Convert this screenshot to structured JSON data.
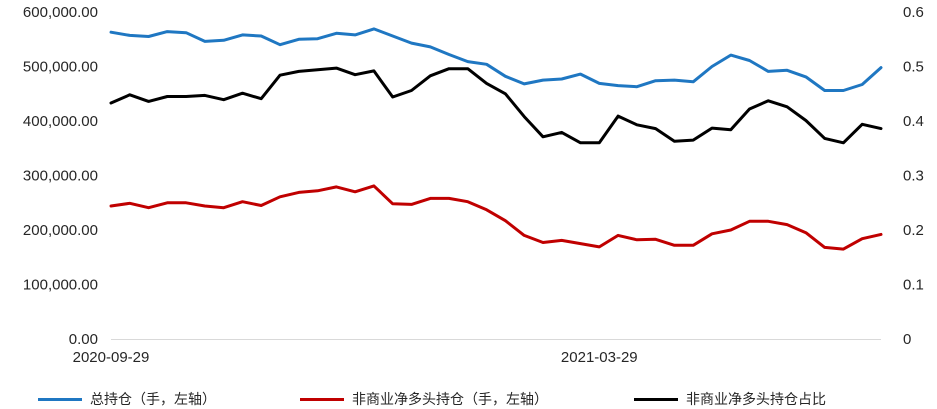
{
  "chart_data": {
    "type": "line",
    "title": "",
    "xlabel": "",
    "ylabel": "",
    "y_left": {
      "ylim": [
        0,
        600000
      ],
      "ticks": [
        "0.00",
        "100,000.00",
        "200,000.00",
        "300,000.00",
        "400,000.00",
        "500,000.00",
        "600,000.00"
      ]
    },
    "y_right": {
      "ylim": [
        0,
        0.6
      ],
      "ticks": [
        "0",
        "0.1",
        "0.2",
        "0.3",
        "0.4",
        "0.5",
        "0.6"
      ]
    },
    "x_tick_labels": [
      {
        "index": 0,
        "label": "2020-09-29"
      },
      {
        "index": 26,
        "label": "2021-03-29"
      }
    ],
    "grid": false,
    "legend_position": "bottom",
    "series": [
      {
        "name": "总持仓（手，左轴）",
        "axis": "left",
        "color": "#1f77c2",
        "values": [
          563000,
          557000,
          555000,
          564000,
          562000,
          546000,
          548000,
          558000,
          556000,
          540000,
          550000,
          551000,
          561000,
          558000,
          569000,
          556000,
          543000,
          536000,
          522000,
          509000,
          504000,
          482000,
          468000,
          475000,
          477000,
          486000,
          469000,
          465000,
          463000,
          474000,
          475000,
          472000,
          500000,
          521000,
          511000,
          491000,
          493000,
          481000,
          456000,
          456000,
          467000,
          498000
        ]
      },
      {
        "name": "非商业净多头持仓（手，左轴）",
        "axis": "left",
        "color": "#c00000",
        "values": [
          244000,
          249000,
          241000,
          250000,
          250000,
          244000,
          241000,
          252000,
          245000,
          261000,
          269000,
          272000,
          279000,
          270000,
          281000,
          248000,
          247000,
          258000,
          258000,
          252000,
          237000,
          217000,
          190000,
          177000,
          181000,
          175000,
          169000,
          190000,
          182000,
          183000,
          172000,
          172000,
          193000,
          200000,
          216000,
          216000,
          210000,
          195000,
          168000,
          165000,
          184000,
          192000
        ]
      },
      {
        "name": "非商业净多头持仓占比",
        "axis": "right",
        "color": "#000000",
        "values": [
          0.433,
          0.448,
          0.436,
          0.445,
          0.445,
          0.447,
          0.439,
          0.451,
          0.441,
          0.484,
          0.491,
          0.494,
          0.497,
          0.485,
          0.492,
          0.444,
          0.456,
          0.483,
          0.496,
          0.496,
          0.469,
          0.45,
          0.408,
          0.371,
          0.379,
          0.36,
          0.36,
          0.409,
          0.393,
          0.386,
          0.363,
          0.365,
          0.387,
          0.384,
          0.422,
          0.437,
          0.426,
          0.401,
          0.368,
          0.36,
          0.394,
          0.386
        ]
      }
    ]
  }
}
